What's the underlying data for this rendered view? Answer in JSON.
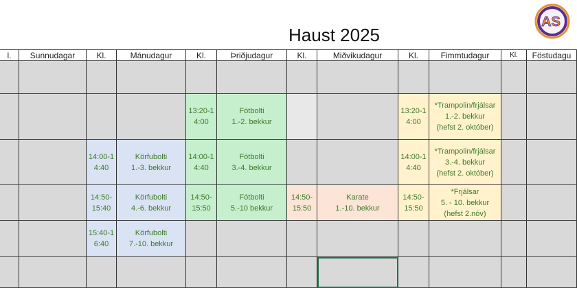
{
  "title": "Haust 2025",
  "logo": {
    "text": "AS",
    "colors": {
      "ring": "#5b2d8e",
      "fill": "#e8912c"
    }
  },
  "colors": {
    "empty": "#d9d9d9",
    "light": "#e8e8e8",
    "blue": "#dae3f3",
    "green": "#c6efce",
    "orange": "#fce4d6",
    "yellow": "#fff2cc",
    "text": "#3d7a2a"
  },
  "headers": [
    "l.",
    "Sunnudagar",
    "Kl.",
    "Mánudagur",
    "Kl.",
    "Þriðjudagur",
    "Kl.",
    "Miðvikudagur",
    "Kl.",
    "Fimmtudagur",
    "Kl.",
    "Föstudagu"
  ],
  "rows": [
    [
      {},
      {},
      {},
      {},
      {},
      {},
      {},
      {},
      {},
      {},
      {},
      {}
    ],
    [
      {},
      {},
      {},
      {},
      {
        "t": "13:20-1\n4:00",
        "bg": "green"
      },
      {
        "t": "Fótbolti\n1.-2. bekkur",
        "bg": "green"
      },
      {
        "bg": "light"
      },
      {},
      {
        "t": "13:20-1\n4:00",
        "bg": "yellow"
      },
      {
        "t": "*Trampolin/frjálsar\n1.-2. bekkur\n(hefst 2. október)",
        "bg": "yellow"
      },
      {},
      {}
    ],
    [
      {},
      {},
      {
        "t": "14:00-1\n4:40",
        "bg": "blue"
      },
      {
        "t": "Körfubolti\n1.-3. bekkur",
        "bg": "blue"
      },
      {
        "t": "14:00-1\n4:40",
        "bg": "green"
      },
      {
        "t": "Fótbolti\n3.-4. bekkur",
        "bg": "green"
      },
      {},
      {},
      {
        "t": "14:00-1\n4:40",
        "bg": "yellow"
      },
      {
        "t": "*Trampolin/frjálsar\n3.-4. bekkur\n(hefst 2. október)",
        "bg": "yellow"
      },
      {},
      {}
    ],
    [
      {},
      {},
      {
        "t": "14:50-\n15:40",
        "bg": "blue"
      },
      {
        "t": "Körfubolti\n4.-6. bekkur",
        "bg": "blue"
      },
      {
        "t": "14:50-\n15:50",
        "bg": "green"
      },
      {
        "t": "Fótbolti\n5.-10 bekkur",
        "bg": "green"
      },
      {
        "t": "14:50-\n15:50",
        "bg": "orange"
      },
      {
        "t": "Karate\n1.-10. bekkur",
        "bg": "orange"
      },
      {
        "t": "14:50-\n15:50",
        "bg": "yellow"
      },
      {
        "t": "*Frjálsar\n5. - 10. bekkur\n(hefst 2.nóv)",
        "bg": "yellow"
      },
      {},
      {}
    ],
    [
      {},
      {},
      {
        "t": "15:40-1\n6:40",
        "bg": "blue"
      },
      {
        "t": "Körfubolti\n7.-10. bekkur",
        "bg": "blue"
      },
      {},
      {},
      {},
      {},
      {},
      {},
      {},
      {}
    ],
    [
      {},
      {},
      {},
      {},
      {},
      {},
      {},
      {
        "selected": true
      },
      {},
      {},
      {},
      {}
    ]
  ]
}
